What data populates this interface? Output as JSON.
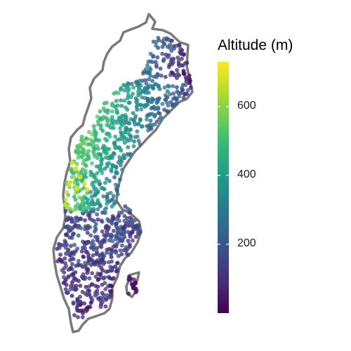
{
  "legend": {
    "title": "Altitude (m)",
    "min": 0,
    "max": 730,
    "ticks": [
      {
        "value": 200,
        "label": "200"
      },
      {
        "value": 400,
        "label": "400"
      },
      {
        "value": 600,
        "label": "600"
      }
    ]
  },
  "colors": {
    "outline": "#7a7a7a",
    "scale": [
      "#440154",
      "#482878",
      "#3e4989",
      "#31688e",
      "#26828e",
      "#1f9e89",
      "#35b779",
      "#6ece58",
      "#b5de2b",
      "#fde725"
    ]
  },
  "map": {
    "region": "Sweden",
    "mark_type": "point",
    "color_variable": "altitude"
  }
}
